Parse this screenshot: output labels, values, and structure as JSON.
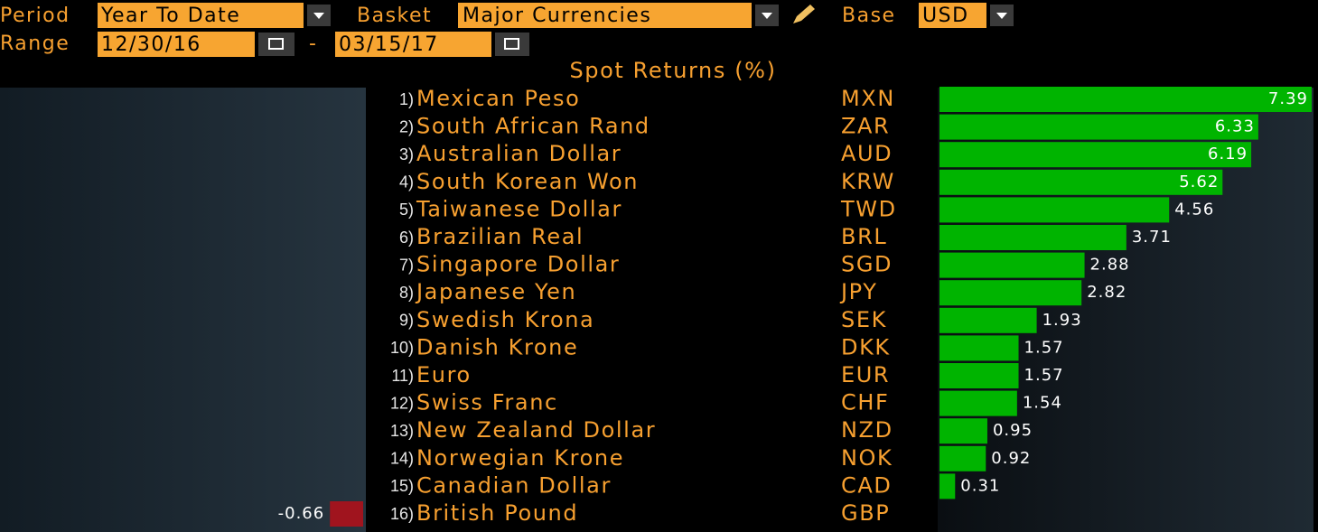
{
  "header": {
    "period_label": "Period",
    "period": "Year To Date",
    "basket_label": "Basket",
    "basket": "Major Currencies",
    "base_label": "Base",
    "base": "USD",
    "range_label": "Range",
    "start": "12/30/16",
    "separator": "-",
    "end": "03/15/17"
  },
  "chart_data": {
    "type": "bar",
    "title": "Spot Returns (%)",
    "ranks": [
      "1)",
      "2)",
      "3)",
      "4)",
      "5)",
      "6)",
      "7)",
      "8)",
      "9)",
      "10)",
      "11)",
      "12)",
      "13)",
      "14)",
      "15)",
      "16)"
    ],
    "categories": [
      "Mexican Peso",
      "South African Rand",
      "Australian Dollar",
      "South Korean Won",
      "Taiwanese Dollar",
      "Brazilian Real",
      "Singapore Dollar",
      "Japanese Yen",
      "Swedish Krona",
      "Danish Krone",
      "Euro",
      "Swiss Franc",
      "New Zealand Dollar",
      "Norwegian Krone",
      "Canadian Dollar",
      "British Pound"
    ],
    "codes": [
      "MXN",
      "ZAR",
      "AUD",
      "KRW",
      "TWD",
      "BRL",
      "SGD",
      "JPY",
      "SEK",
      "DKK",
      "EUR",
      "CHF",
      "NZD",
      "NOK",
      "CAD",
      "GBP"
    ],
    "values": [
      7.39,
      6.33,
      6.19,
      5.62,
      4.56,
      3.71,
      2.88,
      2.82,
      1.93,
      1.57,
      1.57,
      1.54,
      0.95,
      0.92,
      0.31,
      -0.66
    ],
    "color": "#00b400",
    "negative_color": "#a0141e"
  }
}
